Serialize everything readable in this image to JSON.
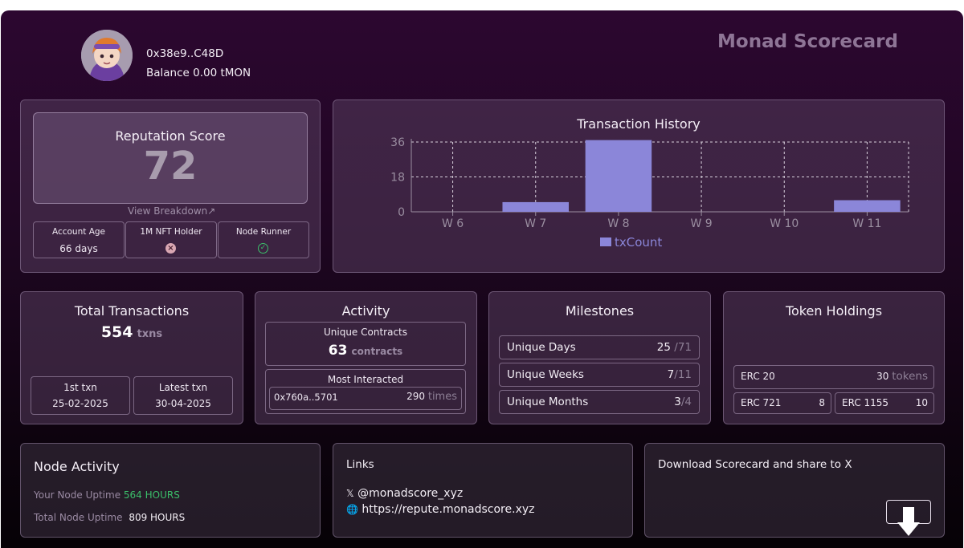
{
  "header": {
    "address": "0x38e9..C48D",
    "balance": "Balance 0.00 tMON",
    "brand": "Monad Scorecard"
  },
  "reputation": {
    "title": "Reputation Score",
    "score": "72",
    "breakdown_link": "View Breakdown↗",
    "account_age": {
      "label": "Account Age",
      "value": "66 days"
    },
    "nft_holder": {
      "label": "1M NFT Holder",
      "status": "no"
    },
    "node_runner": {
      "label": "Node Runner",
      "status": "yes"
    }
  },
  "chart_data": {
    "type": "bar",
    "title": "Transaction History",
    "categories": [
      "W 6",
      "W 7",
      "W 8",
      "W 9",
      "W 10",
      "W 11"
    ],
    "series": [
      {
        "name": "txCount",
        "values": [
          0,
          5,
          37,
          0,
          0,
          6
        ],
        "color": "#8b86d9"
      }
    ],
    "yticks": [
      "0",
      "18",
      "36"
    ],
    "ylim": [
      0,
      36
    ],
    "grid": true,
    "legend": "bottom"
  },
  "total_transactions": {
    "title": "Total Transactions",
    "value": "554",
    "unit": "txns",
    "first_label": "1st txn",
    "first_value": "25-02-2025",
    "latest_label": "Latest txn",
    "latest_value": "30-04-2025"
  },
  "activity": {
    "title": "Activity",
    "unique_contracts_label": "Unique Contracts",
    "unique_contracts_value": "63",
    "unique_contracts_unit": "contracts",
    "most_interacted_label": "Most Interacted",
    "most_interacted_address": "0x760a..5701",
    "most_interacted_count": "290",
    "most_interacted_unit": "times"
  },
  "milestones": {
    "title": "Milestones",
    "rows": [
      {
        "label": "Unique Days",
        "value": "25",
        "total": "/71"
      },
      {
        "label": "Unique Weeks",
        "value": "7",
        "total": "/11"
      },
      {
        "label": "Unique Months",
        "value": "3",
        "total": "/4"
      }
    ]
  },
  "tokens": {
    "title": "Token Holdings",
    "erc20_label": "ERC 20",
    "erc20_value": "30",
    "erc20_unit": "tokens",
    "erc721_label": "ERC 721",
    "erc721_value": "8",
    "erc1155_label": "ERC 1155",
    "erc1155_value": "10"
  },
  "node_activity": {
    "title": "Node Activity",
    "your_label": "Your Node Uptime",
    "your_value": "564 HOURS",
    "total_label": "Total Node Uptime",
    "total_value": "809 HOURS"
  },
  "links": {
    "title": "Links",
    "x_icon": "𝕏",
    "x_handle": "@monadscore_xyz",
    "web_icon": "🌐",
    "website": "https://repute.monadscore.xyz"
  },
  "download": {
    "title": "Download Scorecard and share to X"
  },
  "colors": {
    "accent": "#8b86d9",
    "success": "#3bbf6a",
    "error": "#d9a7b3"
  }
}
